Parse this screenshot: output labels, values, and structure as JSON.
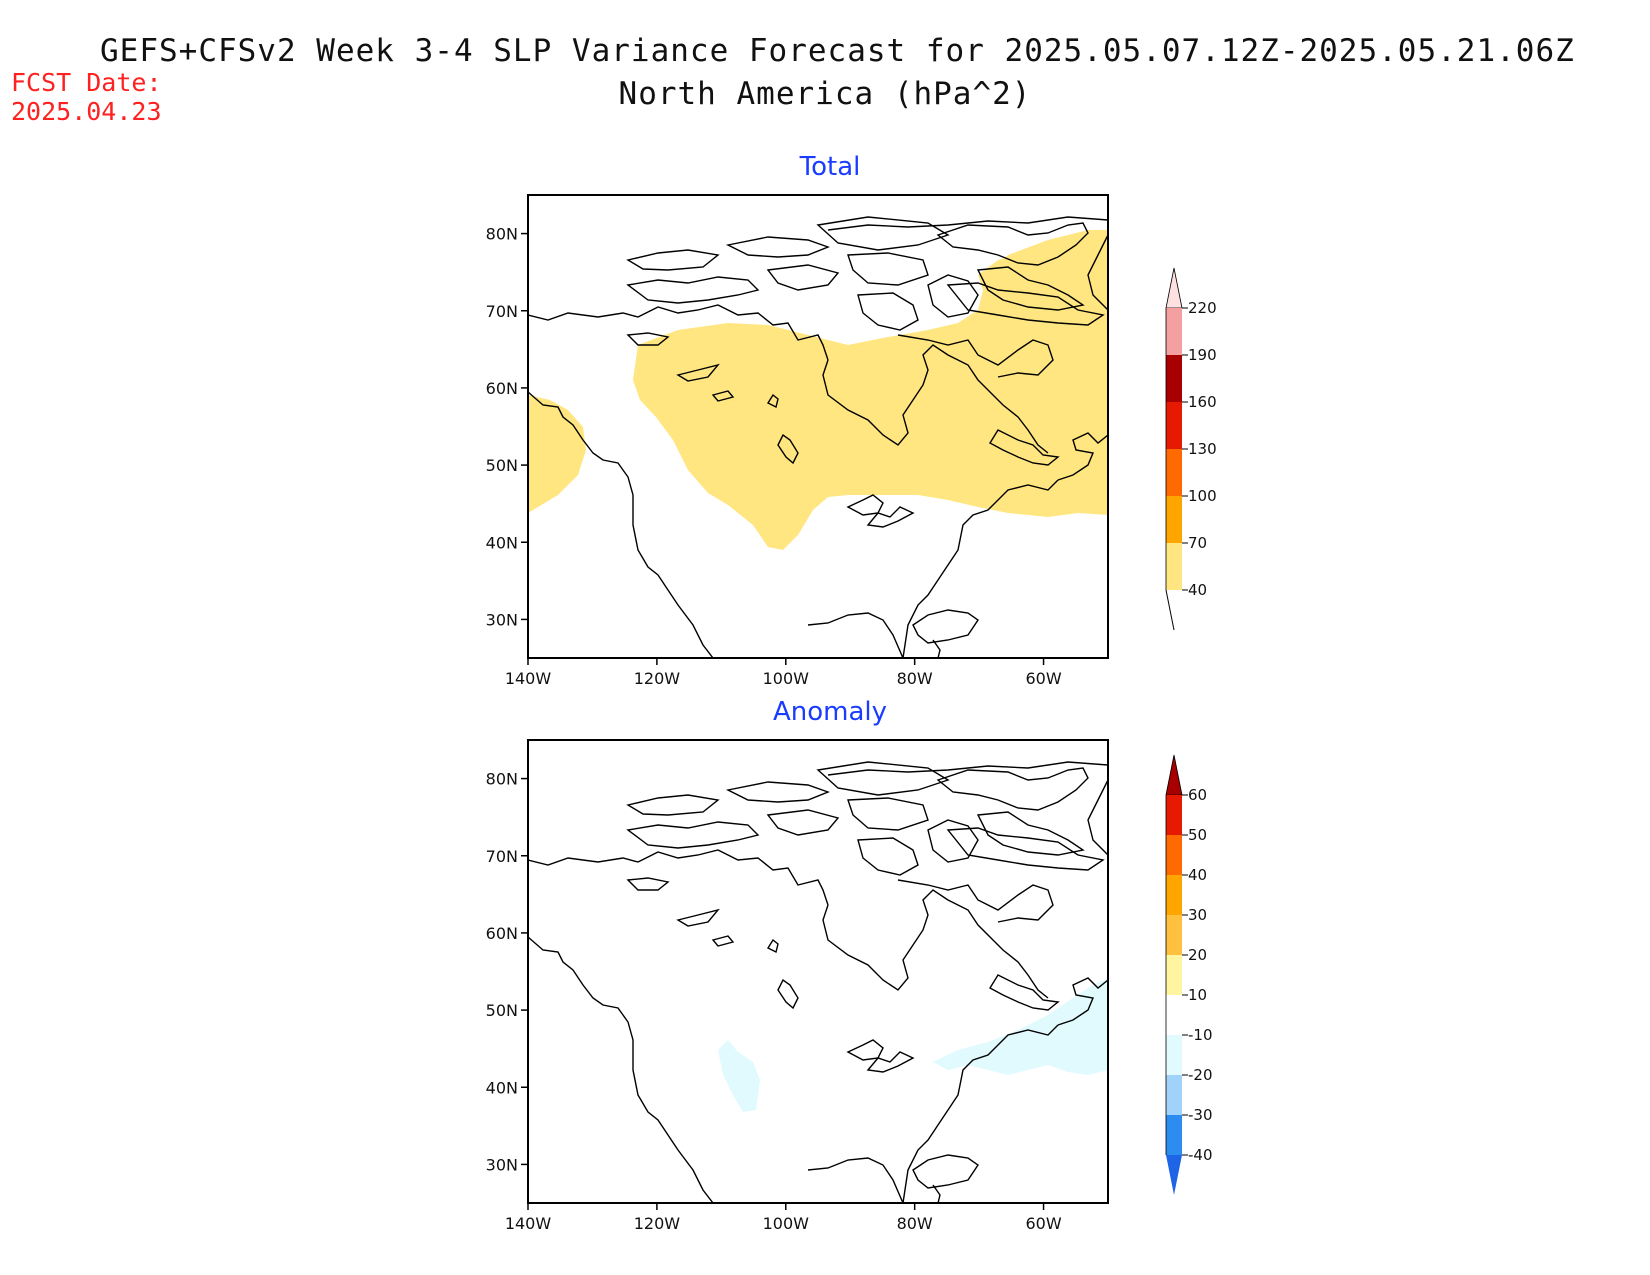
{
  "title": {
    "line1": "GEFS+CFSv2 Week 3-4 SLP Variance Forecast for 2025.05.07.12Z-2025.05.21.06Z",
    "line2": "North America (hPa^2)"
  },
  "fcst": {
    "label": "FCST Date:",
    "date": "2025.04.23"
  },
  "panels": [
    {
      "title": "Total"
    },
    {
      "title": "Anomaly"
    }
  ],
  "axes": {
    "lat_labels": [
      "80N",
      "70N",
      "60N",
      "50N",
      "40N",
      "30N"
    ],
    "lon_labels": [
      "140W",
      "120W",
      "100W",
      "80W",
      "60W"
    ]
  },
  "colorbars": {
    "total": {
      "levels": [
        "40",
        "70",
        "100",
        "130",
        "160",
        "190",
        "220"
      ],
      "colors": [
        "#ffe680",
        "#ffa500",
        "#ff6a00",
        "#e61a00",
        "#a80000",
        "#f4a0a0",
        "#fde0e0"
      ]
    },
    "anomaly": {
      "levels": [
        "-40",
        "-30",
        "-20",
        "-10",
        "10",
        "20",
        "30",
        "40",
        "50",
        "60"
      ],
      "colors": [
        "#1e64e6",
        "#2d8cf0",
        "#a0d2fa",
        "#e0fafe",
        "#ffffff",
        "#fff5a0",
        "#ffc040",
        "#ffa500",
        "#ff6a00",
        "#e61a00",
        "#a80000"
      ]
    }
  }
}
